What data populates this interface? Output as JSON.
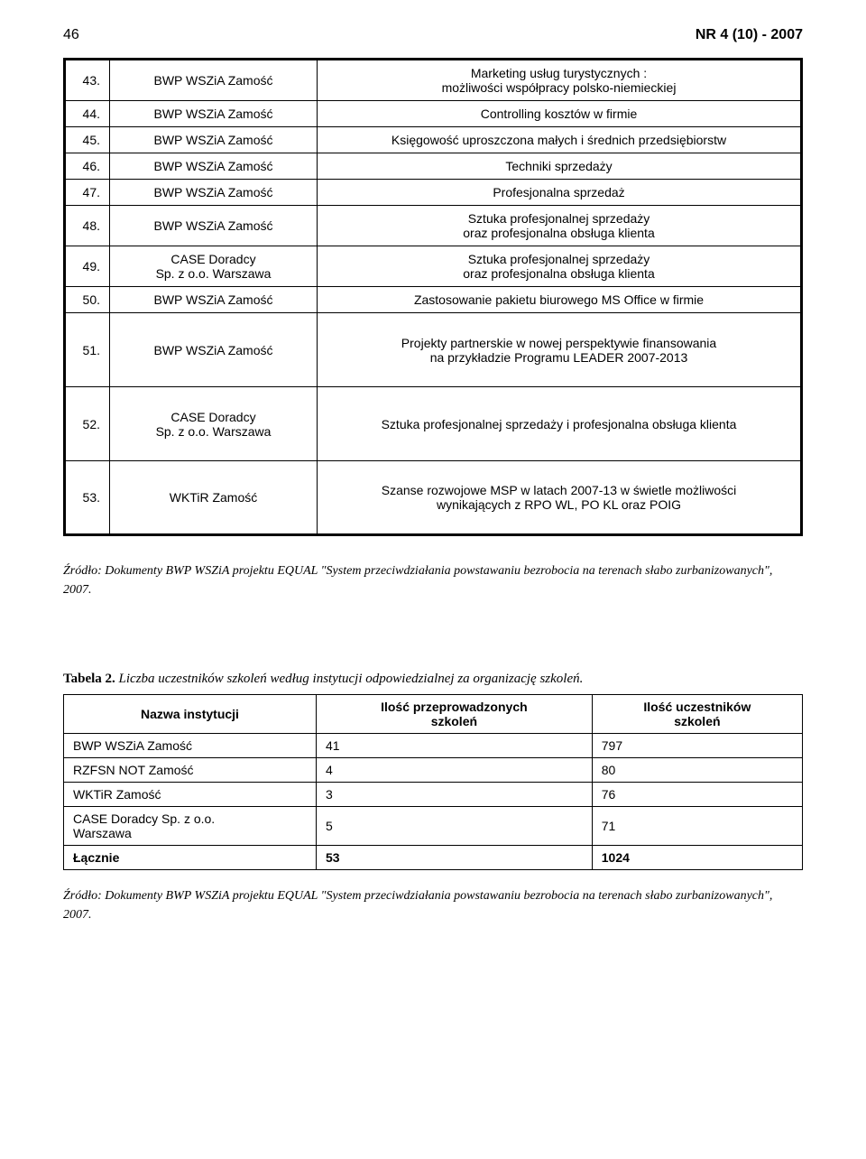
{
  "header": {
    "page": "46",
    "issue": "NR 4 (10) - 2007"
  },
  "table1": {
    "rows": [
      {
        "n": "43.",
        "org": "BWP WSZiA Zamość",
        "desc": "Marketing usług turystycznych :\nmożliwości współpracy polsko-niemieckiej"
      },
      {
        "n": "44.",
        "org": "BWP WSZiA Zamość",
        "desc": "Controlling kosztów w firmie"
      },
      {
        "n": "45.",
        "org": "BWP WSZiA Zamość",
        "desc": "Księgowość uproszczona małych i średnich przedsiębiorstw"
      },
      {
        "n": "46.",
        "org": "BWP WSZiA Zamość",
        "desc": "Techniki sprzedaży"
      },
      {
        "n": "47.",
        "org": "BWP WSZiA Zamość",
        "desc": "Profesjonalna sprzedaż"
      },
      {
        "n": "48.",
        "org": "BWP WSZiA Zamość",
        "desc": "Sztuka profesjonalnej sprzedaży\noraz profesjonalna obsługa klienta"
      },
      {
        "n": "49.",
        "org": "CASE Doradcy\nSp. z o.o. Warszawa",
        "desc": "Sztuka profesjonalnej sprzedaży\noraz profesjonalna obsługa klienta"
      },
      {
        "n": "50.",
        "org": "BWP WSZiA Zamość",
        "desc": "Zastosowanie pakietu biurowego MS Office w firmie"
      },
      {
        "n": "51.",
        "org": "BWP WSZiA Zamość",
        "desc": "Projekty partnerskie w nowej perspektywie finansowania\nna przykładzie Programu LEADER 2007-2013",
        "tall": true
      },
      {
        "n": "52.",
        "org": "CASE Doradcy\nSp. z o.o. Warszawa",
        "desc": "Sztuka profesjonalnej sprzedaży i profesjonalna obsługa klienta",
        "tall": true
      },
      {
        "n": "53.",
        "org": "WKTiR Zamość",
        "desc": "Szanse rozwojowe MSP w latach 2007-13 w świetle możliwości\nwynikających  z RPO WL, PO KL oraz POIG",
        "tall": true
      }
    ]
  },
  "source1": "Źródło: Dokumenty BWP WSZiA  projektu EQUAL \"System przeciwdziałania powstawaniu bezrobocia na terenach słabo zurbanizowanych\", 2007.",
  "tab2caption": {
    "label": "Tabela 2.",
    "text": " Liczba uczestników szkoleń według instytucji odpowiedzialnej za organizację szkoleń."
  },
  "table2": {
    "headers": {
      "name": "Nazwa instytucji",
      "col1": "Ilość przeprowadzonych\nszkoleń",
      "col2": "Ilość uczestników\nszkoleń"
    },
    "rows": [
      {
        "label": "BWP WSZiA Zamość",
        "a": "41",
        "b": "797"
      },
      {
        "label": "RZFSN NOT Zamość",
        "a": "4",
        "b": "80"
      },
      {
        "label": "WKTiR Zamość",
        "a": "3",
        "b": "76"
      },
      {
        "label": "CASE Doradcy Sp. z o.o.\nWarszawa",
        "a": "5",
        "b": "71",
        "two": true
      }
    ],
    "total": {
      "label": "Łącznie",
      "a": "53",
      "b": "1024"
    }
  },
  "source2": "Źródło: Dokumenty BWP WSZiA  projektu EQUAL \"System przeciwdziałania powstawaniu bezrobocia na terenach słabo zurbanizowanych\", 2007."
}
